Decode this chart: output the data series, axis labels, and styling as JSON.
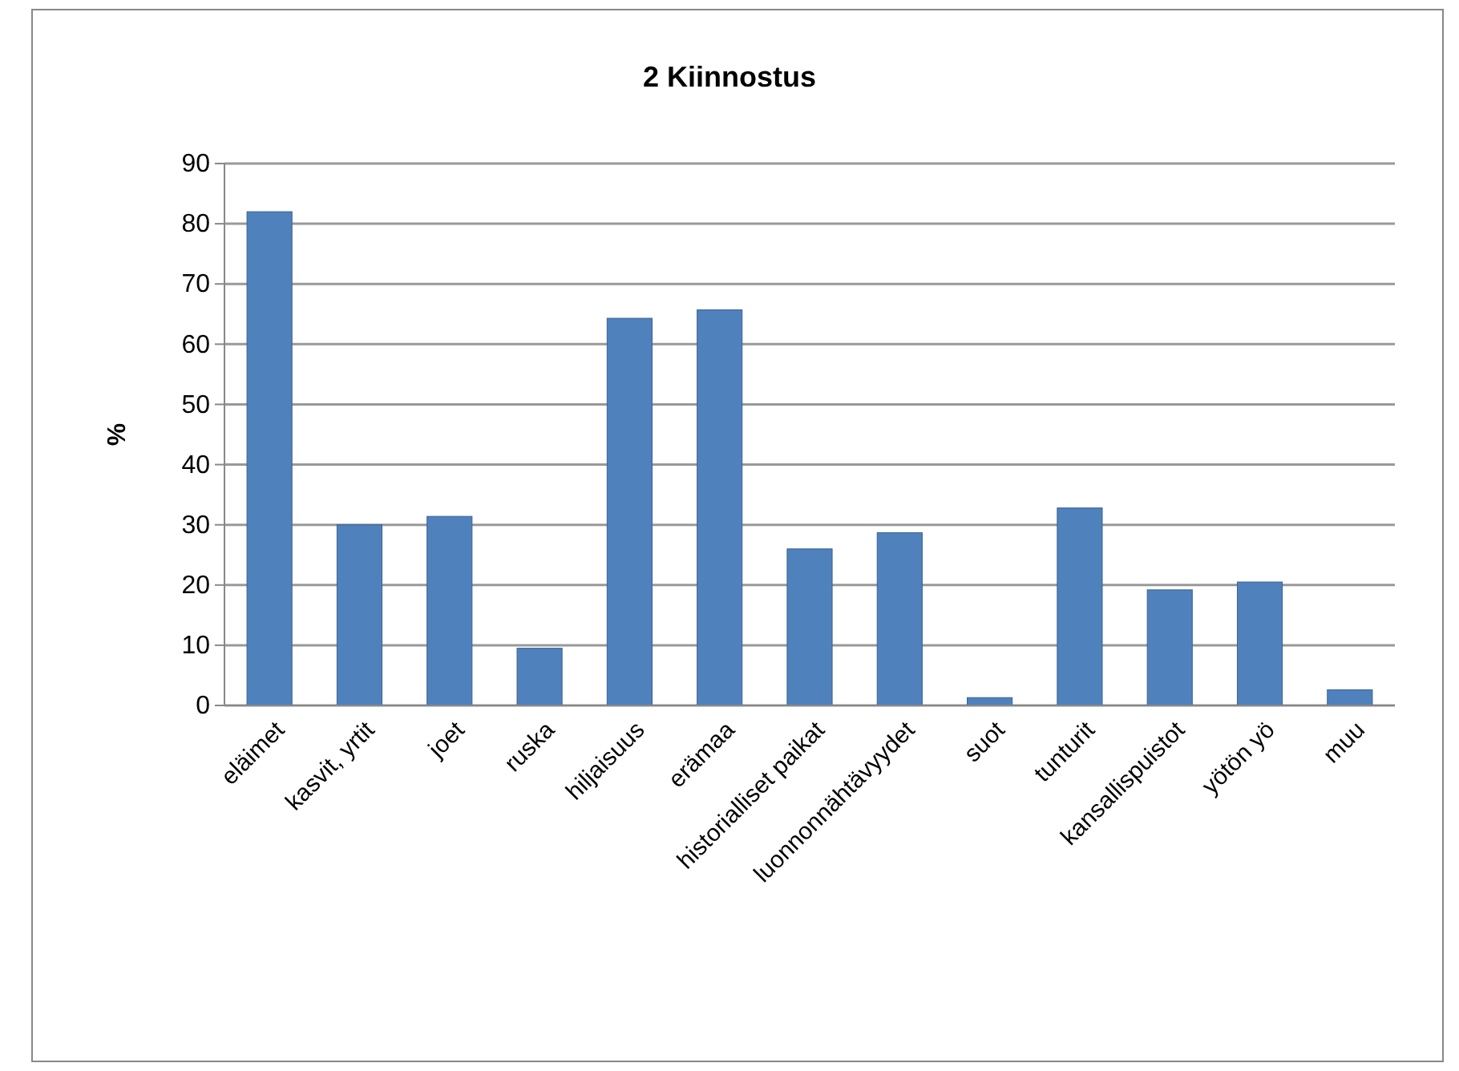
{
  "chart_data": {
    "type": "bar",
    "title": "2 Kiinnostus",
    "ylabel": "%",
    "categories": [
      "eläimet",
      "kasvit, yrtit",
      "joet",
      "ruska",
      "hiljaisuus",
      "erämaa",
      "historialliset paikat",
      "luonnonnähtävyydet",
      "suot",
      "tunturit",
      "kansallispuistot",
      "yötön yö",
      "muu"
    ],
    "values": [
      82,
      30,
      31.4,
      9.5,
      64.3,
      65.7,
      26,
      28.7,
      1.3,
      32.8,
      19.2,
      20.5,
      2.6
    ],
    "color": "#4f81bd",
    "ylim": [
      0,
      90
    ],
    "yticks": [
      0,
      10,
      20,
      30,
      40,
      50,
      60,
      70,
      80,
      90
    ],
    "grid": "y"
  }
}
